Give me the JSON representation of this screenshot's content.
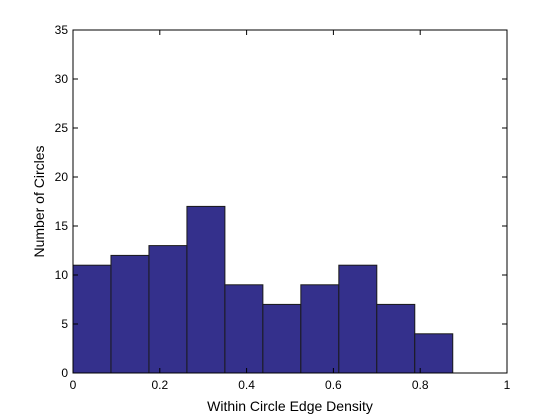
{
  "chart_data": {
    "type": "bar",
    "subtype": "histogram",
    "title": "",
    "xlabel": "Within Circle Edge Density",
    "ylabel": "Number of Circles",
    "xlim": [
      0,
      1
    ],
    "ylim": [
      0,
      35
    ],
    "xticks": [
      0,
      0.2,
      0.4,
      0.6,
      0.8,
      1
    ],
    "xtick_labels": [
      "0",
      "0.2",
      "0.4",
      "0.6",
      "0.8",
      "1"
    ],
    "yticks": [
      0,
      5,
      10,
      15,
      20,
      25,
      30,
      35
    ],
    "ytick_labels": [
      "0",
      "5",
      "10",
      "15",
      "20",
      "25",
      "30",
      "35"
    ],
    "bins": [
      {
        "x0": 0.0,
        "x1": 0.0875,
        "count": 11
      },
      {
        "x0": 0.0875,
        "x1": 0.175,
        "count": 12
      },
      {
        "x0": 0.175,
        "x1": 0.2625,
        "count": 13
      },
      {
        "x0": 0.2625,
        "x1": 0.35,
        "count": 17
      },
      {
        "x0": 0.35,
        "x1": 0.4375,
        "count": 9
      },
      {
        "x0": 0.4375,
        "x1": 0.525,
        "count": 7
      },
      {
        "x0": 0.525,
        "x1": 0.6125,
        "count": 9
      },
      {
        "x0": 0.6125,
        "x1": 0.7,
        "count": 11
      },
      {
        "x0": 0.7,
        "x1": 0.7875,
        "count": 7
      },
      {
        "x0": 0.7875,
        "x1": 0.875,
        "count": 4
      }
    ],
    "bar_color": "#34308c",
    "grid": false,
    "legend": "none"
  }
}
